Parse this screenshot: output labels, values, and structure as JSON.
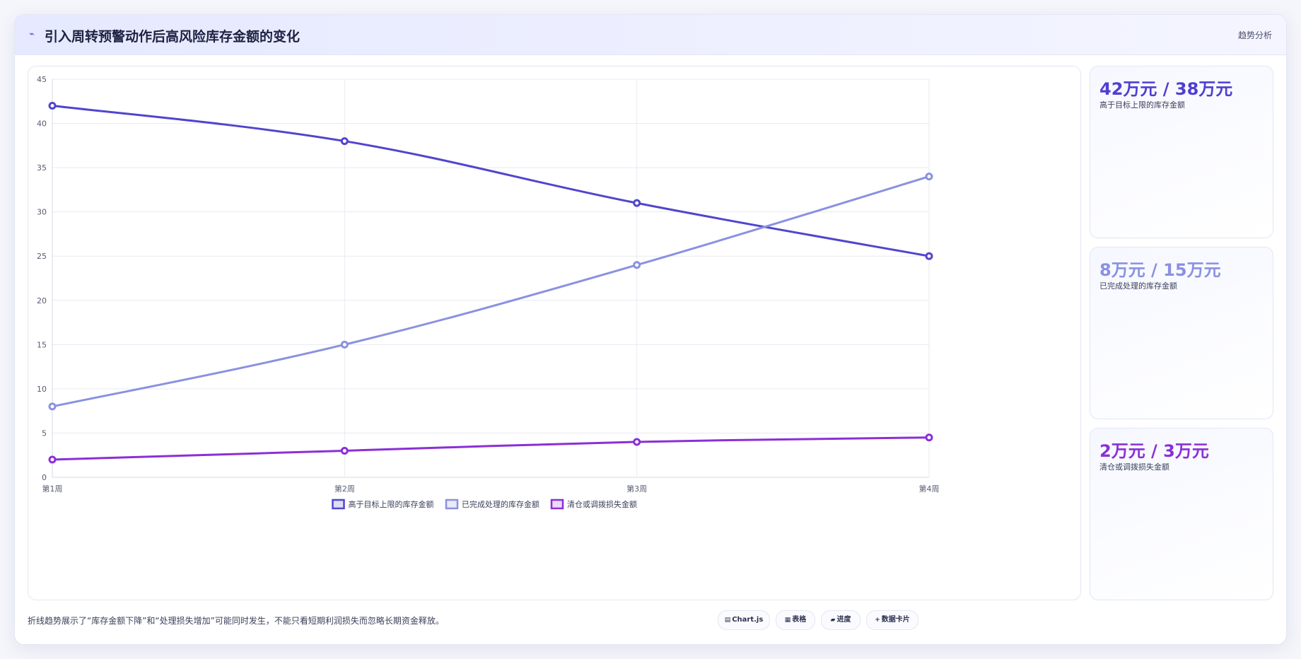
{
  "header": {
    "title": "引入周转预警动作后高风险库存金额的变化",
    "tag": "趋势分析"
  },
  "chart_data": {
    "type": "line",
    "categories": [
      "第1周",
      "第2周",
      "第3周",
      "第4周"
    ],
    "ylim": [
      0,
      45
    ],
    "yticks": [
      0,
      5,
      10,
      15,
      20,
      25,
      30,
      35,
      40,
      45
    ],
    "grid": true,
    "legend_position": "bottom",
    "series": [
      {
        "name": "高于目标上限的库存金额",
        "values": [
          42,
          38,
          31,
          25
        ],
        "color": "#5145cd"
      },
      {
        "name": "已完成处理的库存金额",
        "values": [
          8,
          15,
          24,
          34
        ],
        "color": "#8a91e0"
      },
      {
        "name": "清仓或调拨损失金额",
        "values": [
          2,
          3,
          4,
          4.5
        ],
        "color": "#8b2fd6"
      }
    ]
  },
  "stats": [
    {
      "value": "42万元 / 38万元",
      "label": "高于目标上限的库存金额",
      "color": "#4f3fd0"
    },
    {
      "value": "8万元 / 15万元",
      "label": "已完成处理的库存金额",
      "color": "#8a91e0"
    },
    {
      "value": "2万元 / 3万元",
      "label": "清仓或调拨损失金额",
      "color": "#8b2fd6"
    }
  ],
  "footer": {
    "note": "折线趋势展示了“库存金额下降”和“处理损失增加”可能同时发生，不能只看短期利润损失而忽略长期资金释放。",
    "pills": [
      {
        "icon": "▤",
        "label": "Chart.js"
      },
      {
        "icon": "▦",
        "label": "表格"
      },
      {
        "icon": "▰",
        "label": "进度"
      },
      {
        "icon": "+",
        "label": "数据卡片"
      }
    ]
  }
}
